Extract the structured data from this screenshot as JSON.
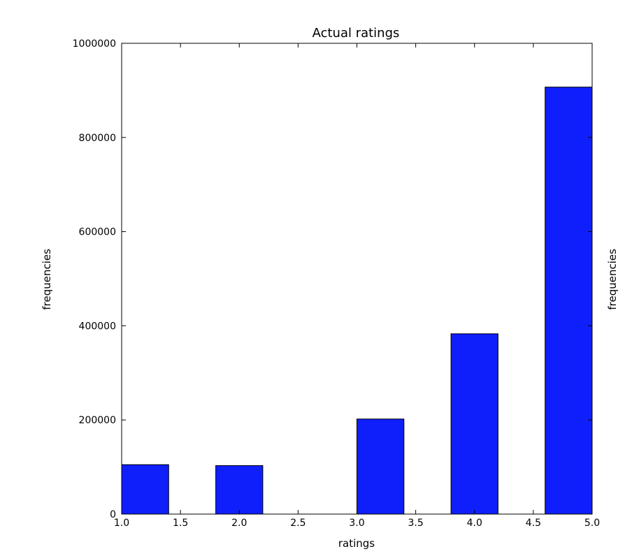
{
  "chart_data": {
    "type": "bar",
    "title": "Actual ratings",
    "xlabel": "ratings",
    "ylabel": "frequencies",
    "ylabel_right": "frequencies",
    "xlim": [
      1.0,
      5.0
    ],
    "ylim": [
      0,
      1000000
    ],
    "bar_color": "#0f1ffc",
    "edge_color": "#000000",
    "bins": [
      {
        "x0": 1.0,
        "x1": 1.4,
        "value": 105000
      },
      {
        "x0": 1.4,
        "x1": 1.8,
        "value": 0
      },
      {
        "x0": 1.8,
        "x1": 2.2,
        "value": 103000
      },
      {
        "x0": 2.2,
        "x1": 2.6,
        "value": 0
      },
      {
        "x0": 2.6,
        "x1": 3.0,
        "value": 0
      },
      {
        "x0": 3.0,
        "x1": 3.4,
        "value": 202000
      },
      {
        "x0": 3.4,
        "x1": 3.8,
        "value": 0
      },
      {
        "x0": 3.8,
        "x1": 4.2,
        "value": 383000
      },
      {
        "x0": 4.2,
        "x1": 4.6,
        "value": 0
      },
      {
        "x0": 4.6,
        "x1": 5.0,
        "value": 907000
      }
    ],
    "xticks": [
      1.0,
      1.5,
      2.0,
      2.5,
      3.0,
      3.5,
      4.0,
      4.5,
      5.0
    ],
    "xtick_labels": [
      "1.0",
      "1.5",
      "2.0",
      "2.5",
      "3.0",
      "3.5",
      "4.0",
      "4.5",
      "5.0"
    ],
    "yticks": [
      0,
      200000,
      400000,
      600000,
      800000,
      1000000
    ],
    "ytick_labels": [
      "0",
      "200000",
      "400000",
      "600000",
      "800000",
      "1000000"
    ],
    "grid": false
  }
}
